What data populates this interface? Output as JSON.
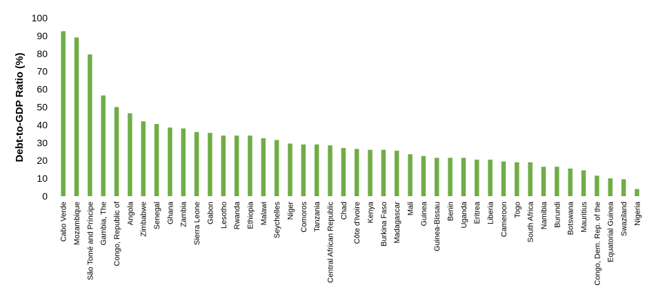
{
  "chart_data": {
    "type": "bar",
    "title": "",
    "xlabel": "",
    "ylabel": "Debt-to-GDP Ratio (%)",
    "ylim": [
      0,
      100
    ],
    "yticks": [
      0,
      10,
      20,
      30,
      40,
      50,
      60,
      70,
      80,
      90,
      100
    ],
    "grid": false,
    "legend": "none",
    "bar_color": "#70AD47",
    "categories": [
      "Cabo Verde",
      "Mozambique",
      "São Tomé and Príncipe",
      "Gambia, The",
      "Congo, Republic of",
      "Angola",
      "Zimbabwe",
      "Senegal",
      "Ghana",
      "Zambia",
      "Sierra Leone",
      "Gabon",
      "Lesotho",
      "Rwanda",
      "Ethiopia",
      "Malawi",
      "Seychelles",
      "Niger",
      "Comoros",
      "Tanzania",
      "Central African Republic",
      "Chad",
      "Côte d'Ivoire",
      "Kenya",
      "Burkina Faso",
      "Madagascar",
      "Mali",
      "Guinea",
      "Guinea-Bissau",
      "Benin",
      "Uganda",
      "Eritrea",
      "Liberia",
      "Cameroon",
      "Togo",
      "South Africa",
      "Namibia",
      "Burundi",
      "Botswana",
      "Mauritius",
      "Congo, Dem. Rep. of the",
      "Equatorial Guinea",
      "Swaziland",
      "Nigeria"
    ],
    "values": [
      92.5,
      89,
      79.5,
      56.5,
      50,
      46.5,
      42,
      40.5,
      38.5,
      38,
      36,
      35.5,
      34,
      34,
      34,
      32.5,
      31.5,
      29.5,
      29,
      29,
      28.5,
      27,
      26.5,
      26,
      26,
      25.5,
      23.5,
      22.5,
      21.5,
      21.5,
      21.5,
      20.5,
      20.5,
      19.5,
      19,
      19,
      16.5,
      16.5,
      15.5,
      14.5,
      11.5,
      10,
      9.5,
      4
    ]
  }
}
